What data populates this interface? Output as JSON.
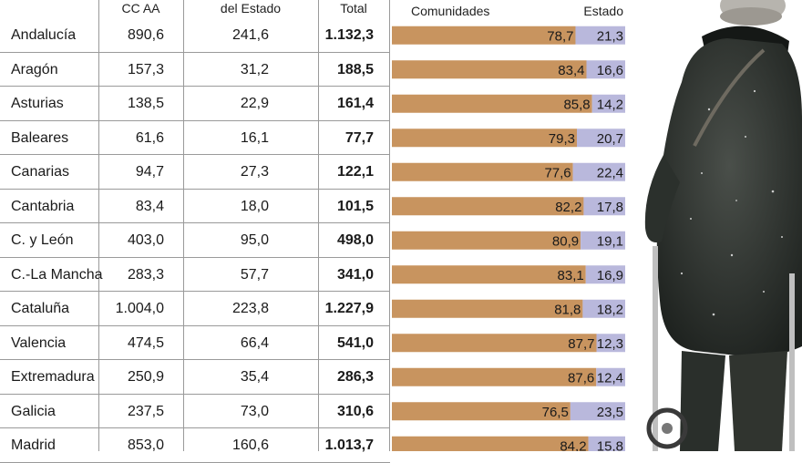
{
  "table": {
    "headers": {
      "ccaa": "CC AA",
      "estado": "del Estado",
      "total": "Total"
    },
    "rows": [
      {
        "name": "Andalucía",
        "ccaa": "890,6",
        "estado": "241,6",
        "total": "1.132,3"
      },
      {
        "name": "Aragón",
        "ccaa": "157,3",
        "estado": "31,2",
        "total": "188,5"
      },
      {
        "name": "Asturias",
        "ccaa": "138,5",
        "estado": "22,9",
        "total": "161,4"
      },
      {
        "name": "Baleares",
        "ccaa": "61,6",
        "estado": "16,1",
        "total": "77,7"
      },
      {
        "name": "Canarias",
        "ccaa": "94,7",
        "estado": "27,3",
        "total": "122,1"
      },
      {
        "name": "Cantabria",
        "ccaa": "83,4",
        "estado": "18,0",
        "total": "101,5"
      },
      {
        "name": "C. y León",
        "ccaa": "403,0",
        "estado": "95,0",
        "total": "498,0"
      },
      {
        "name": "C.-La Mancha",
        "ccaa": "283,3",
        "estado": "57,7",
        "total": "341,0"
      },
      {
        "name": "Cataluña",
        "ccaa": "1.004,0",
        "estado": "223,8",
        "total": "1.227,9"
      },
      {
        "name": "Valencia",
        "ccaa": "474,5",
        "estado": "66,4",
        "total": "541,0"
      },
      {
        "name": "Extremadura",
        "ccaa": "250,9",
        "estado": "35,4",
        "total": "286,3"
      },
      {
        "name": "Galicia",
        "ccaa": "237,5",
        "estado": "73,0",
        "total": "310,6"
      },
      {
        "name": "Madrid",
        "ccaa": "853,0",
        "estado": "160,6",
        "total": "1.013,7"
      }
    ]
  },
  "chart_data": {
    "type": "bar",
    "stacked": true,
    "orientation": "horizontal",
    "percent_scale": 100,
    "categories": [
      "Andalucía",
      "Aragón",
      "Asturias",
      "Baleares",
      "Canarias",
      "Cantabria",
      "C. y León",
      "C.-La Mancha",
      "Cataluña",
      "Valencia",
      "Extremadura",
      "Galicia",
      "Madrid"
    ],
    "series": [
      {
        "name": "Comunidades",
        "color": "#c8945f",
        "values": [
          78.7,
          83.4,
          85.8,
          79.3,
          77.6,
          82.2,
          80.9,
          83.1,
          81.8,
          87.7,
          87.6,
          76.5,
          84.2
        ],
        "labels": [
          "78,7",
          "83,4",
          "85,8",
          "79,3",
          "77,6",
          "82,2",
          "80,9",
          "83,1",
          "81,8",
          "87,7",
          "87,6",
          "76,5",
          "84,2"
        ]
      },
      {
        "name": "Estado",
        "color": "#b9b8dc",
        "values": [
          21.3,
          16.6,
          14.2,
          20.7,
          22.4,
          17.8,
          19.1,
          16.9,
          18.2,
          12.3,
          12.4,
          23.5,
          15.8
        ],
        "labels": [
          "21,3",
          "16,6",
          "14,2",
          "20,7",
          "22,4",
          "17,8",
          "19,1",
          "16,9",
          "18,2",
          "12,3",
          "12,4",
          "23,5",
          "15,8"
        ]
      }
    ]
  },
  "colors": {
    "comunidades": "#c8945f",
    "estado": "#b9b8dc",
    "grid": "#9a9a9a"
  }
}
